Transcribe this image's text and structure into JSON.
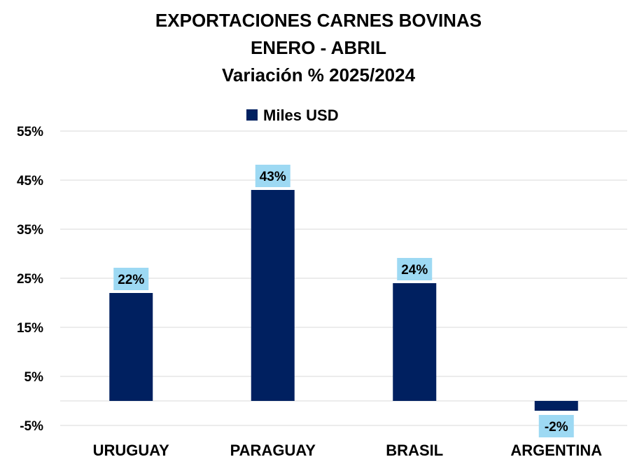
{
  "colors": {
    "bar": "#002060",
    "label_bg": "#9dd9f3",
    "grid": "#d9d9d9",
    "text": "#000000"
  },
  "chart_data": {
    "type": "bar",
    "title": [
      "EXPORTACIONES CARNES BOVINAS",
      "ENERO - ABRIL",
      "Variación % 2025/2024"
    ],
    "categories": [
      "URUGUAY",
      "PARAGUAY",
      "BRASIL",
      "ARGENTINA"
    ],
    "series": [
      {
        "name": "Miles USD",
        "values": [
          22,
          43,
          24,
          -2
        ],
        "labels": [
          "22%",
          "43%",
          "24%",
          "-2%"
        ]
      }
    ],
    "yticks": [
      "55%",
      "45%",
      "35%",
      "25%",
      "15%",
      "5%",
      "-5%"
    ],
    "ytick_values": [
      55,
      45,
      35,
      25,
      15,
      5,
      -5
    ],
    "ylim": [
      -5,
      55
    ],
    "grid": true,
    "legend_position": "top-center"
  }
}
